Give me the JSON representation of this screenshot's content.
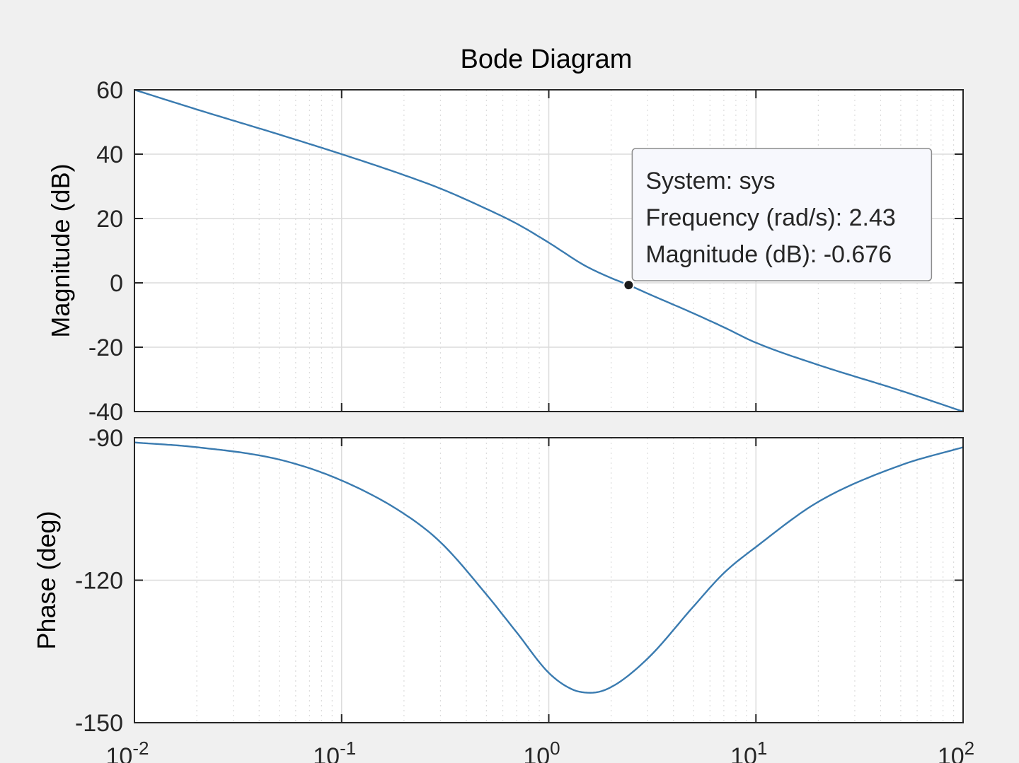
{
  "chart_data": {
    "type": "line",
    "title": "Bode Diagram",
    "x_scale": "log",
    "xlim": [
      0.01,
      100
    ],
    "x_ticks": [
      {
        "value": 0.01,
        "base": "10",
        "exp": "-2"
      },
      {
        "value": 0.1,
        "base": "10",
        "exp": "-1"
      },
      {
        "value": 1,
        "base": "10",
        "exp": "0"
      },
      {
        "value": 10,
        "base": "10",
        "exp": "1"
      },
      {
        "value": 100,
        "base": "10",
        "exp": "2"
      }
    ],
    "grid": true,
    "colors": {
      "line": "#3a7bb0",
      "background": "#f0f0f0",
      "axes": "#ffffff",
      "grid": "#dcdcdc"
    },
    "panels": [
      {
        "ylabel": "Magnitude (dB)",
        "ylim": [
          -40,
          60
        ],
        "yticks": [
          60,
          40,
          20,
          0,
          -20,
          -40
        ],
        "series": [
          {
            "x": [
              0.01,
              0.02,
              0.05,
              0.1,
              0.2,
              0.3,
              0.5,
              0.7,
              1,
              1.5,
              2,
              2.43,
              3,
              5,
              7,
              10,
              20,
              50,
              100
            ],
            "y": [
              60,
              53.9,
              46.1,
              40,
              33.5,
              29.3,
              23,
              18.4,
              12.5,
              5.3,
              1.5,
              -0.676,
              -3.3,
              -9.5,
              -13.8,
              -18.6,
              -25.5,
              -33.5,
              -40
            ]
          }
        ]
      },
      {
        "ylabel": "Phase (deg)",
        "ylim": [
          -150,
          -90
        ],
        "yticks": [
          -90,
          -120,
          -150
        ],
        "series": [
          {
            "x": [
              0.01,
              0.02,
              0.05,
              0.1,
              0.2,
              0.3,
              0.5,
              0.7,
              1,
              1.3,
              1.6,
              2,
              3,
              5,
              7,
              10,
              20,
              50,
              100
            ],
            "y": [
              -91,
              -92,
              -94.6,
              -99,
              -106,
              -112,
              -123,
              -131,
              -139.5,
              -143,
              -143.7,
              -142.5,
              -136.5,
              -125.5,
              -118.5,
              -113,
              -103.5,
              -95.8,
              -92
            ]
          }
        ]
      }
    ],
    "datatip": {
      "line1": "System: sys",
      "line2": "Frequency (rad/s): 2.43",
      "line3": "Magnitude (dB): -0.676",
      "x": 2.43,
      "y": -0.676,
      "panel": 0
    }
  }
}
